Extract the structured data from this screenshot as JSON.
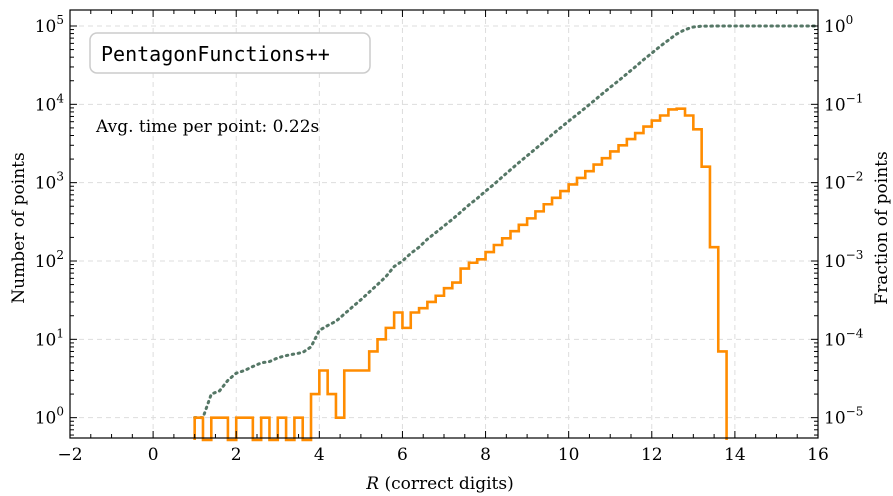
{
  "chart_data": {
    "type": "histogram",
    "title": "",
    "xlabel_italic": "R",
    "xlabel_rest": " (correct digits)",
    "ylabel_left": "Number of points",
    "ylabel_right": "Fraction of points",
    "xlim": [
      -2,
      16
    ],
    "ylim_left": [
      0.55,
      160000
    ],
    "yscale": "log",
    "grid": true,
    "x_ticks": [
      "−2",
      "0",
      "2",
      "4",
      "6",
      "8",
      "10",
      "12",
      "14",
      "16"
    ],
    "y_ticks_left": [
      {
        "base": "10",
        "exp": "0"
      },
      {
        "base": "10",
        "exp": "1"
      },
      {
        "base": "10",
        "exp": "2"
      },
      {
        "base": "10",
        "exp": "3"
      },
      {
        "base": "10",
        "exp": "4"
      },
      {
        "base": "10",
        "exp": "5"
      }
    ],
    "y_ticks_right": [
      {
        "base": "10",
        "exp": "−5"
      },
      {
        "base": "10",
        "exp": "−4"
      },
      {
        "base": "10",
        "exp": "−3"
      },
      {
        "base": "10",
        "exp": "−2"
      },
      {
        "base": "10",
        "exp": "−1"
      },
      {
        "base": "10",
        "exp": "0"
      }
    ],
    "legend_box_text": "PentagonFunctions++",
    "annotation": "Avg. time per point: 0.22s",
    "series": [
      {
        "kind": "histogram",
        "color": "#ff8c00",
        "bin_width": 0.2,
        "bins": [
          [
            1.0,
            1
          ],
          [
            1.4,
            1
          ],
          [
            1.6,
            1
          ],
          [
            2.0,
            1
          ],
          [
            2.2,
            1
          ],
          [
            2.6,
            1
          ],
          [
            3.0,
            1
          ],
          [
            3.4,
            1
          ],
          [
            3.8,
            2
          ],
          [
            4.0,
            4
          ],
          [
            4.2,
            2
          ],
          [
            4.4,
            1
          ],
          [
            4.6,
            4
          ],
          [
            4.8,
            4
          ],
          [
            5.0,
            4
          ],
          [
            5.2,
            7
          ],
          [
            5.4,
            10
          ],
          [
            5.6,
            14
          ],
          [
            5.8,
            22
          ],
          [
            6.0,
            14
          ],
          [
            6.2,
            22
          ],
          [
            6.4,
            25
          ],
          [
            6.6,
            30
          ],
          [
            6.8,
            36
          ],
          [
            7.0,
            45
          ],
          [
            7.2,
            53
          ],
          [
            7.4,
            80
          ],
          [
            7.6,
            95
          ],
          [
            7.8,
            105
          ],
          [
            8.0,
            130
          ],
          [
            8.2,
            160
          ],
          [
            8.4,
            195
          ],
          [
            8.6,
            240
          ],
          [
            8.8,
            290
          ],
          [
            9.0,
            350
          ],
          [
            9.2,
            430
          ],
          [
            9.4,
            530
          ],
          [
            9.6,
            640
          ],
          [
            9.8,
            780
          ],
          [
            10.0,
            950
          ],
          [
            10.2,
            1150
          ],
          [
            10.4,
            1400
          ],
          [
            10.6,
            1700
          ],
          [
            10.8,
            2050
          ],
          [
            11.0,
            2500
          ],
          [
            11.2,
            3000
          ],
          [
            11.4,
            3600
          ],
          [
            11.6,
            4300
          ],
          [
            11.8,
            5200
          ],
          [
            12.0,
            6200
          ],
          [
            12.2,
            7200
          ],
          [
            12.4,
            8600
          ],
          [
            12.6,
            8800
          ],
          [
            12.8,
            7200
          ],
          [
            13.0,
            4800
          ],
          [
            13.2,
            1600
          ],
          [
            13.4,
            150
          ],
          [
            13.6,
            7
          ]
        ]
      },
      {
        "kind": "cumulative",
        "color": "#557766",
        "axis": "right",
        "points": [
          [
            1.0,
            1e-05
          ],
          [
            1.2,
            1e-05
          ],
          [
            1.4,
            2e-05
          ],
          [
            1.6,
            2.2e-05
          ],
          [
            1.8,
            3e-05
          ],
          [
            2.0,
            3.7e-05
          ],
          [
            2.2,
            4e-05
          ],
          [
            2.4,
            4.5e-05
          ],
          [
            2.6,
            5e-05
          ],
          [
            2.8,
            5.2e-05
          ],
          [
            3.0,
            5.8e-05
          ],
          [
            3.2,
            6.2e-05
          ],
          [
            3.4,
            6.5e-05
          ],
          [
            3.6,
            6.8e-05
          ],
          [
            3.8,
            8e-05
          ],
          [
            4.0,
            0.00013
          ],
          [
            4.2,
            0.00015
          ],
          [
            4.4,
            0.00017
          ],
          [
            4.6,
            0.00021
          ],
          [
            4.8,
            0.00026
          ],
          [
            5.0,
            0.00032
          ],
          [
            5.2,
            0.0004
          ],
          [
            5.4,
            0.0005
          ],
          [
            5.6,
            0.00063
          ],
          [
            5.8,
            0.00085
          ],
          [
            6.0,
            0.001
          ],
          [
            6.2,
            0.00125
          ],
          [
            6.4,
            0.0015
          ],
          [
            6.6,
            0.0019
          ],
          [
            6.8,
            0.0023
          ],
          [
            7.0,
            0.0028
          ],
          [
            7.2,
            0.0034
          ],
          [
            7.4,
            0.0042
          ],
          [
            7.6,
            0.0052
          ],
          [
            7.8,
            0.0063
          ],
          [
            8.0,
            0.0078
          ],
          [
            8.2,
            0.0095
          ],
          [
            8.4,
            0.0118
          ],
          [
            8.6,
            0.0146
          ],
          [
            8.8,
            0.018
          ],
          [
            9.0,
            0.022
          ],
          [
            9.2,
            0.027
          ],
          [
            9.4,
            0.033
          ],
          [
            9.6,
            0.041
          ],
          [
            9.8,
            0.05
          ],
          [
            10.0,
            0.061
          ],
          [
            10.2,
            0.074
          ],
          [
            10.4,
            0.09
          ],
          [
            10.6,
            0.11
          ],
          [
            10.8,
            0.135
          ],
          [
            11.0,
            0.165
          ],
          [
            11.2,
            0.2
          ],
          [
            11.4,
            0.245
          ],
          [
            11.6,
            0.3
          ],
          [
            11.8,
            0.37
          ],
          [
            12.0,
            0.45
          ],
          [
            12.2,
            0.55
          ],
          [
            12.4,
            0.66
          ],
          [
            12.6,
            0.79
          ],
          [
            12.8,
            0.9
          ],
          [
            13.0,
            0.97
          ],
          [
            13.2,
            0.995
          ],
          [
            13.6,
            1.0
          ],
          [
            16.0,
            1.0
          ]
        ]
      }
    ]
  }
}
